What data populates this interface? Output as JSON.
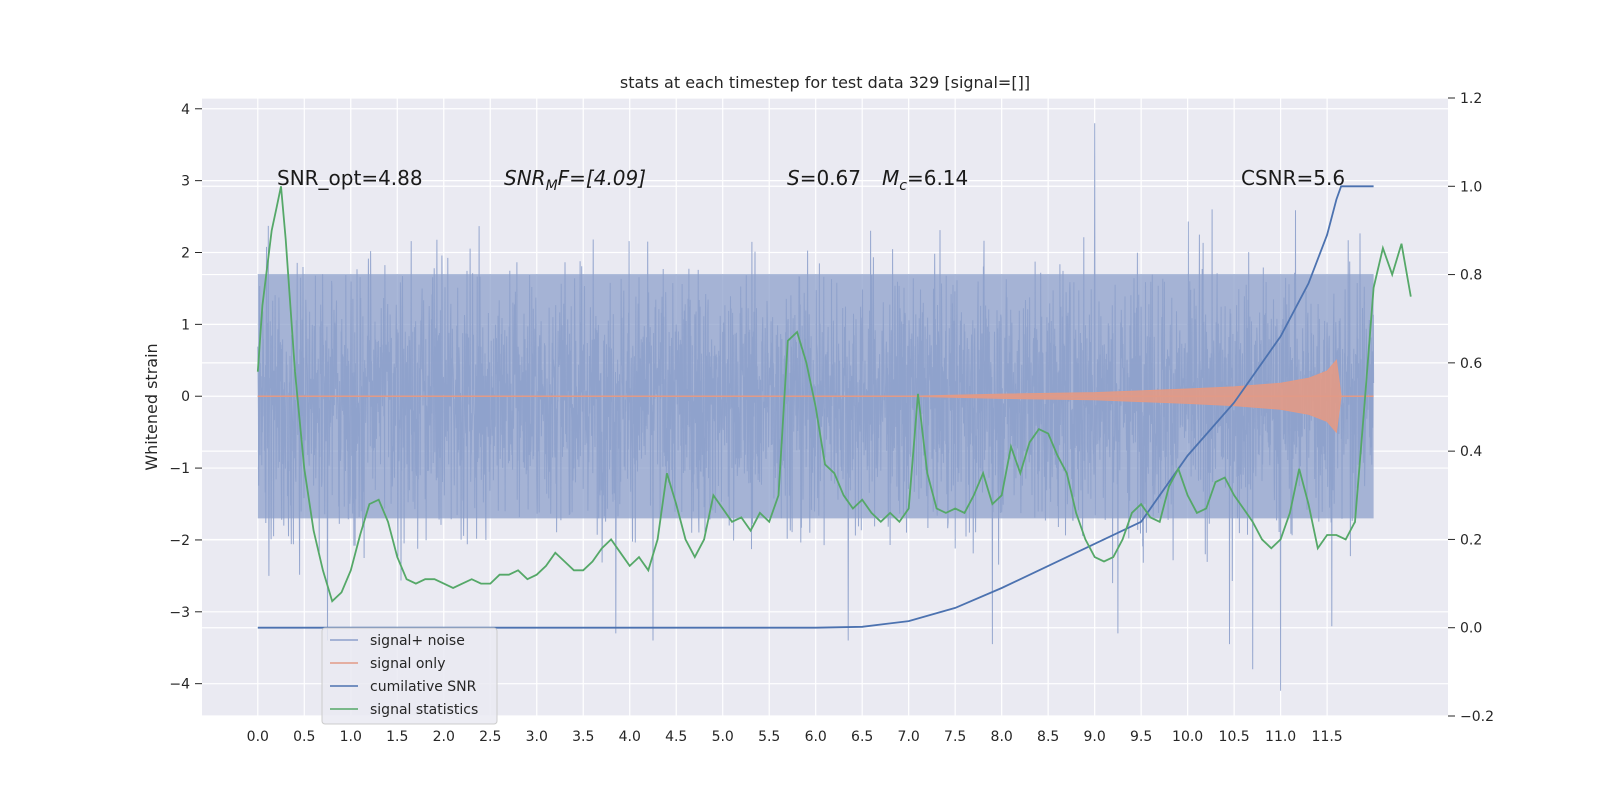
{
  "chart_data": {
    "type": "line",
    "title": "stats at each timestep for test data 329 [signal=[]]",
    "ylabel": "Whitened strain",
    "xlim": [
      -0.6,
      12.8
    ],
    "ylim": [
      -4.45,
      4.15
    ],
    "ylim_right": [
      -0.2,
      1.2
    ],
    "grid": true,
    "legend_position": "lower-left",
    "x_ticks": [
      0.0,
      0.5,
      1.0,
      1.5,
      2.0,
      2.5,
      3.0,
      3.5,
      4.0,
      4.5,
      5.0,
      5.5,
      6.0,
      6.5,
      7.0,
      7.5,
      8.0,
      8.5,
      9.0,
      9.5,
      10.0,
      10.5,
      11.0,
      11.5
    ],
    "x_tick_labels": [
      "0.0",
      "0.5",
      "1.0",
      "1.5",
      "2.0",
      "2.5",
      "3.0",
      "3.5",
      "4.0",
      "4.5",
      "5.0",
      "5.5",
      "6.0",
      "6.5",
      "7.0",
      "7.5",
      "8.0",
      "8.5",
      "9.0",
      "9.5",
      "10.0",
      "10.5",
      "11.0",
      "11.5"
    ],
    "y_ticks": [
      -4,
      -3,
      -2,
      -1,
      0,
      1,
      2,
      3,
      4
    ],
    "y_tick_labels": [
      "−4",
      "−3",
      "−2",
      "−1",
      "0",
      "1",
      "2",
      "3",
      "4"
    ],
    "y_right_ticks": [
      -0.2,
      0.0,
      0.2,
      0.4,
      0.6,
      0.8,
      1.0,
      1.2
    ],
    "y_right_tick_labels": [
      "−0.2",
      "0.0",
      "0.2",
      "0.4",
      "0.6",
      "0.8",
      "1.0",
      "1.2"
    ],
    "annotations": {
      "snr_opt": "SNR_opt=4.88",
      "snr_mf_main": "SNR",
      "snr_mf_sub": "M",
      "snr_mf_rest": "F=[4.09]",
      "s_var": "S",
      "s_val": "=0.67",
      "mc_var": "M",
      "mc_sub": "c",
      "mc_val": "=6.14",
      "csnr": "CSNR=5.6"
    },
    "series": [
      {
        "name": "signal+ noise",
        "color": "#8da0cb",
        "axis": "left",
        "x_range": [
          0.0,
          12.0
        ],
        "amplitude_typical": 1.7,
        "peak_values": [
          [
            0.12,
            -2.5
          ],
          [
            0.75,
            -3.4
          ],
          [
            3.85,
            -3.3
          ],
          [
            4.25,
            -3.4
          ],
          [
            6.35,
            -3.4
          ],
          [
            7.9,
            -3.45
          ],
          [
            9.0,
            3.8
          ],
          [
            9.25,
            -3.3
          ],
          [
            10.45,
            -3.45
          ],
          [
            10.7,
            -3.8
          ],
          [
            11.0,
            -4.1
          ],
          [
            11.55,
            -3.2
          ]
        ]
      },
      {
        "name": "signal only",
        "color": "#e29a86",
        "axis": "left",
        "points": [
          [
            0.0,
            0.0
          ],
          [
            7.0,
            0.0
          ],
          [
            8.0,
            0.03
          ],
          [
            9.0,
            0.05
          ],
          [
            10.0,
            0.1
          ],
          [
            10.5,
            0.13
          ],
          [
            11.0,
            0.18
          ],
          [
            11.3,
            0.25
          ],
          [
            11.5,
            0.35
          ],
          [
            11.6,
            0.5
          ],
          [
            11.65,
            0.0
          ]
        ]
      },
      {
        "name": "cumilative SNR",
        "color": "#4c72b0",
        "axis": "right",
        "points": [
          [
            0.0,
            0.0
          ],
          [
            6.0,
            0.0
          ],
          [
            6.5,
            0.002
          ],
          [
            7.0,
            0.015
          ],
          [
            7.5,
            0.045
          ],
          [
            8.0,
            0.09
          ],
          [
            8.5,
            0.14
          ],
          [
            9.0,
            0.19
          ],
          [
            9.5,
            0.24
          ],
          [
            10.0,
            0.39
          ],
          [
            10.5,
            0.51
          ],
          [
            11.0,
            0.66
          ],
          [
            11.3,
            0.78
          ],
          [
            11.5,
            0.89
          ],
          [
            11.6,
            0.97
          ],
          [
            11.65,
            1.0
          ],
          [
            12.0,
            1.0
          ]
        ]
      },
      {
        "name": "signal statistics",
        "color": "#55a868",
        "axis": "right",
        "points": [
          [
            0.0,
            0.58
          ],
          [
            0.05,
            0.73
          ],
          [
            0.15,
            0.9
          ],
          [
            0.2,
            0.95
          ],
          [
            0.25,
            1.0
          ],
          [
            0.3,
            0.88
          ],
          [
            0.4,
            0.58
          ],
          [
            0.5,
            0.36
          ],
          [
            0.6,
            0.22
          ],
          [
            0.7,
            0.13
          ],
          [
            0.8,
            0.06
          ],
          [
            0.9,
            0.08
          ],
          [
            1.0,
            0.13
          ],
          [
            1.1,
            0.21
          ],
          [
            1.2,
            0.28
          ],
          [
            1.3,
            0.29
          ],
          [
            1.4,
            0.24
          ],
          [
            1.5,
            0.16
          ],
          [
            1.6,
            0.11
          ],
          [
            1.7,
            0.1
          ],
          [
            1.8,
            0.11
          ],
          [
            1.9,
            0.11
          ],
          [
            2.0,
            0.1
          ],
          [
            2.1,
            0.09
          ],
          [
            2.2,
            0.1
          ],
          [
            2.3,
            0.11
          ],
          [
            2.4,
            0.1
          ],
          [
            2.5,
            0.1
          ],
          [
            2.6,
            0.12
          ],
          [
            2.7,
            0.12
          ],
          [
            2.8,
            0.13
          ],
          [
            2.9,
            0.11
          ],
          [
            3.0,
            0.12
          ],
          [
            3.1,
            0.14
          ],
          [
            3.2,
            0.17
          ],
          [
            3.3,
            0.15
          ],
          [
            3.4,
            0.13
          ],
          [
            3.5,
            0.13
          ],
          [
            3.6,
            0.15
          ],
          [
            3.7,
            0.18
          ],
          [
            3.8,
            0.2
          ],
          [
            3.9,
            0.17
          ],
          [
            4.0,
            0.14
          ],
          [
            4.1,
            0.16
          ],
          [
            4.2,
            0.13
          ],
          [
            4.3,
            0.2
          ],
          [
            4.4,
            0.35
          ],
          [
            4.5,
            0.28
          ],
          [
            4.6,
            0.2
          ],
          [
            4.7,
            0.16
          ],
          [
            4.8,
            0.2
          ],
          [
            4.9,
            0.3
          ],
          [
            5.0,
            0.27
          ],
          [
            5.1,
            0.24
          ],
          [
            5.2,
            0.25
          ],
          [
            5.3,
            0.22
          ],
          [
            5.4,
            0.26
          ],
          [
            5.5,
            0.24
          ],
          [
            5.6,
            0.3
          ],
          [
            5.7,
            0.65
          ],
          [
            5.8,
            0.67
          ],
          [
            5.9,
            0.6
          ],
          [
            6.0,
            0.5
          ],
          [
            6.1,
            0.37
          ],
          [
            6.2,
            0.35
          ],
          [
            6.3,
            0.3
          ],
          [
            6.4,
            0.27
          ],
          [
            6.5,
            0.29
          ],
          [
            6.6,
            0.26
          ],
          [
            6.7,
            0.24
          ],
          [
            6.8,
            0.26
          ],
          [
            6.9,
            0.24
          ],
          [
            7.0,
            0.27
          ],
          [
            7.1,
            0.53
          ],
          [
            7.2,
            0.35
          ],
          [
            7.3,
            0.27
          ],
          [
            7.4,
            0.26
          ],
          [
            7.5,
            0.27
          ],
          [
            7.6,
            0.26
          ],
          [
            7.7,
            0.3
          ],
          [
            7.8,
            0.35
          ],
          [
            7.9,
            0.28
          ],
          [
            8.0,
            0.3
          ],
          [
            8.1,
            0.41
          ],
          [
            8.2,
            0.35
          ],
          [
            8.3,
            0.42
          ],
          [
            8.4,
            0.45
          ],
          [
            8.5,
            0.44
          ],
          [
            8.6,
            0.39
          ],
          [
            8.7,
            0.35
          ],
          [
            8.8,
            0.26
          ],
          [
            8.9,
            0.2
          ],
          [
            9.0,
            0.16
          ],
          [
            9.1,
            0.15
          ],
          [
            9.2,
            0.16
          ],
          [
            9.3,
            0.2
          ],
          [
            9.4,
            0.26
          ],
          [
            9.5,
            0.28
          ],
          [
            9.6,
            0.25
          ],
          [
            9.7,
            0.24
          ],
          [
            9.8,
            0.32
          ],
          [
            9.9,
            0.36
          ],
          [
            10.0,
            0.3
          ],
          [
            10.1,
            0.26
          ],
          [
            10.2,
            0.27
          ],
          [
            10.3,
            0.33
          ],
          [
            10.4,
            0.34
          ],
          [
            10.5,
            0.3
          ],
          [
            10.6,
            0.27
          ],
          [
            10.7,
            0.24
          ],
          [
            10.8,
            0.2
          ],
          [
            10.9,
            0.18
          ],
          [
            11.0,
            0.2
          ],
          [
            11.1,
            0.26
          ],
          [
            11.2,
            0.36
          ],
          [
            11.3,
            0.28
          ],
          [
            11.4,
            0.18
          ],
          [
            11.5,
            0.21
          ],
          [
            11.6,
            0.21
          ],
          [
            11.7,
            0.2
          ],
          [
            11.8,
            0.24
          ],
          [
            11.9,
            0.5
          ],
          [
            12.0,
            0.77
          ],
          [
            12.1,
            0.86
          ],
          [
            12.2,
            0.8
          ],
          [
            12.3,
            0.87
          ],
          [
            12.4,
            0.75
          ]
        ]
      }
    ]
  }
}
